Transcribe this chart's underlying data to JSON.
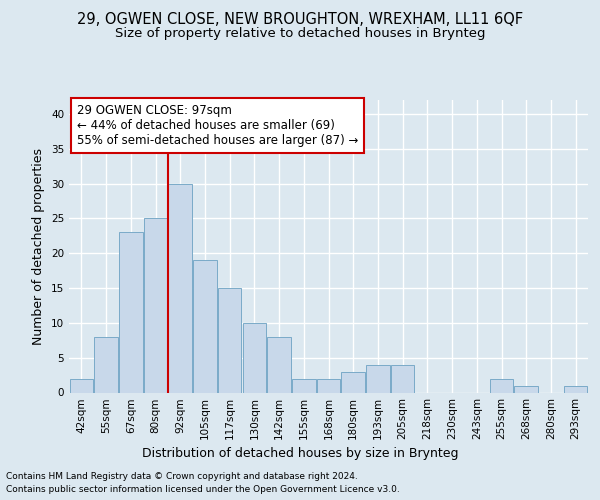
{
  "title1": "29, OGWEN CLOSE, NEW BROUGHTON, WREXHAM, LL11 6QF",
  "title2": "Size of property relative to detached houses in Brynteg",
  "xlabel": "Distribution of detached houses by size in Brynteg",
  "ylabel": "Number of detached properties",
  "footer1": "Contains HM Land Registry data © Crown copyright and database right 2024.",
  "footer2": "Contains public sector information licensed under the Open Government Licence v3.0.",
  "categories": [
    "42sqm",
    "55sqm",
    "67sqm",
    "80sqm",
    "92sqm",
    "105sqm",
    "117sqm",
    "130sqm",
    "142sqm",
    "155sqm",
    "168sqm",
    "180sqm",
    "193sqm",
    "205sqm",
    "218sqm",
    "230sqm",
    "243sqm",
    "255sqm",
    "268sqm",
    "280sqm",
    "293sqm"
  ],
  "values": [
    2,
    8,
    23,
    25,
    30,
    19,
    15,
    10,
    8,
    2,
    2,
    3,
    4,
    4,
    0,
    0,
    0,
    2,
    1,
    0,
    1
  ],
  "bar_color": "#c8d8ea",
  "bar_edge_color": "#7aaac8",
  "highlight_line_color": "#cc0000",
  "highlight_line_xindex": 4,
  "annotation_line1": "29 OGWEN CLOSE: 97sqm",
  "annotation_line2": "← 44% of detached houses are smaller (69)",
  "annotation_line3": "55% of semi-detached houses are larger (87) →",
  "annotation_box_facecolor": "#ffffff",
  "annotation_box_edgecolor": "#cc0000",
  "ylim_max": 42,
  "yticks": [
    0,
    5,
    10,
    15,
    20,
    25,
    30,
    35,
    40
  ],
  "bg_color": "#dce8f0",
  "grid_color": "#ffffff",
  "title1_fontsize": 10.5,
  "title2_fontsize": 9.5,
  "axis_label_fontsize": 9,
  "tick_fontsize": 7.5,
  "footer_fontsize": 6.5,
  "annotation_fontsize": 8.5
}
